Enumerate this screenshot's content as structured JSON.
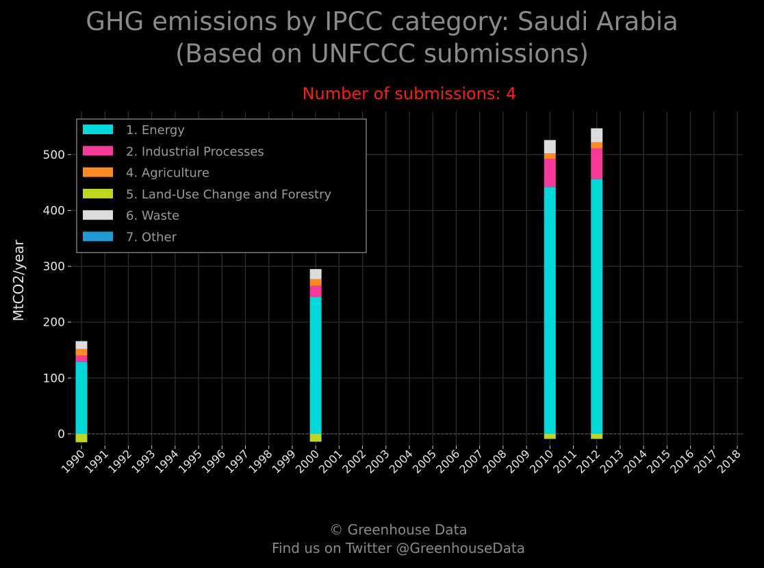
{
  "title_line1": "GHG emissions by IPCC category: Saudi Arabia",
  "title_line2": "(Based on UNFCCC submissions)",
  "subtitle": "Number of submissions: 4",
  "footer_line1": "© Greenhouse Data",
  "footer_line2": "Find us on Twitter @GreenhouseData",
  "chart_data": {
    "type": "bar",
    "stacked": true,
    "ylabel": "MtCO2/year",
    "xlabel": "",
    "ylim": [
      -15,
      570
    ],
    "yticks": [
      0,
      100,
      200,
      300,
      400,
      500
    ],
    "grid": true,
    "legend_position": "top-left",
    "categories": [
      "1990",
      "1991",
      "1992",
      "1993",
      "1994",
      "1995",
      "1996",
      "1997",
      "1998",
      "1999",
      "2000",
      "2001",
      "2002",
      "2003",
      "2004",
      "2005",
      "2006",
      "2007",
      "2008",
      "2009",
      "2010",
      "2011",
      "2012",
      "2013",
      "2014",
      "2015",
      "2016",
      "2017",
      "2018"
    ],
    "series": [
      {
        "name": "1. Energy",
        "color": "#00d9d9",
        "values": [
          129,
          0,
          0,
          0,
          0,
          0,
          0,
          0,
          0,
          0,
          245,
          0,
          0,
          0,
          0,
          0,
          0,
          0,
          0,
          0,
          442,
          0,
          456,
          0,
          0,
          0,
          0,
          0,
          0
        ]
      },
      {
        "name": "2. Industrial Processes",
        "color": "#f7399b",
        "values": [
          11,
          0,
          0,
          0,
          0,
          0,
          0,
          0,
          0,
          0,
          20,
          0,
          0,
          0,
          0,
          0,
          0,
          0,
          0,
          0,
          50,
          0,
          55,
          0,
          0,
          0,
          0,
          0,
          0
        ]
      },
      {
        "name": "4. Agriculture",
        "color": "#ff8a1f",
        "values": [
          12,
          0,
          0,
          0,
          0,
          0,
          0,
          0,
          0,
          0,
          12,
          0,
          0,
          0,
          0,
          0,
          0,
          0,
          0,
          0,
          10,
          0,
          11,
          0,
          0,
          0,
          0,
          0,
          0
        ]
      },
      {
        "name": "5. Land-Use Change and Forestry",
        "color": "#bfd621",
        "values": [
          -15,
          0,
          0,
          0,
          0,
          0,
          0,
          0,
          0,
          0,
          -14,
          0,
          0,
          0,
          0,
          0,
          0,
          0,
          0,
          0,
          -9,
          0,
          -9,
          0,
          0,
          0,
          0,
          0,
          0
        ]
      },
      {
        "name": "6. Waste",
        "color": "#dcdcdc",
        "values": [
          14,
          0,
          0,
          0,
          0,
          0,
          0,
          0,
          0,
          0,
          18,
          0,
          0,
          0,
          0,
          0,
          0,
          0,
          0,
          0,
          24,
          0,
          25,
          0,
          0,
          0,
          0,
          0,
          0
        ]
      },
      {
        "name": "7. Other",
        "color": "#1e9ad6",
        "values": [
          0,
          0,
          0,
          0,
          0,
          0,
          0,
          0,
          0,
          0,
          0,
          0,
          0,
          0,
          0,
          0,
          0,
          0,
          0,
          0,
          0,
          0,
          0,
          0,
          0,
          0,
          0,
          0,
          0
        ]
      }
    ]
  }
}
